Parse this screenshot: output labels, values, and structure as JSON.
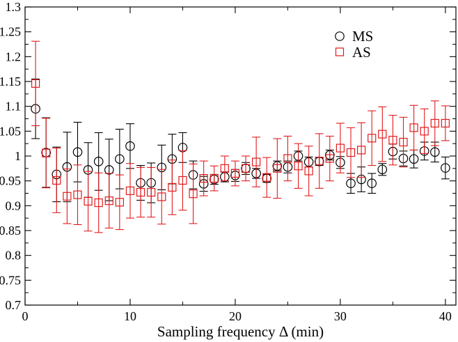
{
  "chart_data": {
    "type": "scatter",
    "title": "",
    "xlabel": "Sampling frequency Δ  (min)",
    "ylabel": "",
    "xlim": [
      0,
      41
    ],
    "ylim": [
      0.7,
      1.3
    ],
    "xticks": [
      0,
      10,
      20,
      30,
      40
    ],
    "yticks": [
      0.7,
      0.75,
      0.8,
      0.85,
      0.9,
      0.95,
      1,
      1.05,
      1.1,
      1.15,
      1.2,
      1.25,
      1.3
    ],
    "x_tick_labels": [
      "0",
      "10",
      "20",
      "30",
      "40"
    ],
    "y_tick_labels": [
      "0.7",
      "0.75",
      "0.8",
      "0.85",
      "0.9",
      "0.95",
      "1",
      "1.05",
      "1.1",
      "1.15",
      "1.2",
      "1.25",
      "1.3"
    ],
    "grid": false,
    "legend": {
      "placement": "top-right",
      "entries": [
        "MS",
        "AS"
      ]
    },
    "series": [
      {
        "name": "MS",
        "marker": "circle",
        "color": "#000000",
        "x": [
          1,
          2,
          3,
          4,
          5,
          6,
          7,
          8,
          9,
          10,
          11,
          12,
          13,
          14,
          15,
          16,
          17,
          18,
          19,
          20,
          21,
          22,
          23,
          24,
          25,
          26,
          27,
          28,
          29,
          30,
          31,
          32,
          33,
          34,
          35,
          36,
          37,
          38,
          39,
          40
        ],
        "y": [
          1.095,
          1.007,
          0.963,
          0.978,
          1.008,
          0.972,
          0.989,
          0.972,
          0.994,
          1.02,
          0.946,
          0.946,
          0.977,
          0.994,
          1.017,
          0.962,
          0.944,
          0.953,
          0.958,
          0.961,
          0.975,
          0.965,
          0.955,
          0.98,
          0.978,
          1.0,
          0.988,
          0.989,
          1.002,
          0.987,
          0.945,
          0.953,
          0.945,
          0.973,
          1.009,
          0.995,
          0.994,
          1.01,
          1.008,
          0.976
        ],
        "err": [
          0.06,
          0.07,
          0.055,
          0.07,
          0.06,
          0.055,
          0.058,
          0.062,
          0.06,
          0.045,
          0.035,
          0.04,
          0.045,
          0.05,
          0.03,
          0.028,
          0.015,
          0.01,
          0.01,
          0.012,
          0.012,
          0.01,
          0.008,
          0.01,
          0.012,
          0.01,
          0.01,
          0.008,
          0.01,
          0.012,
          0.02,
          0.025,
          0.02,
          0.012,
          0.015,
          0.015,
          0.018,
          0.018,
          0.02,
          0.022
        ]
      },
      {
        "name": "AS",
        "marker": "square",
        "color": "#e31a1c",
        "x": [
          1,
          2,
          3,
          4,
          5,
          6,
          7,
          8,
          9,
          10,
          11,
          12,
          13,
          14,
          15,
          16,
          17,
          18,
          19,
          20,
          21,
          22,
          23,
          24,
          25,
          26,
          27,
          28,
          29,
          30,
          31,
          32,
          33,
          34,
          35,
          36,
          37,
          38,
          39,
          40
        ],
        "y": [
          1.146,
          1.006,
          0.951,
          0.919,
          0.922,
          0.909,
          0.906,
          0.91,
          0.907,
          0.93,
          0.927,
          0.927,
          0.918,
          0.937,
          0.951,
          0.924,
          0.955,
          0.955,
          0.975,
          0.965,
          0.975,
          0.988,
          0.957,
          0.975,
          0.995,
          0.98,
          0.97,
          0.99,
          0.995,
          1.016,
          1.007,
          1.012,
          1.036,
          1.044,
          1.032,
          1.028,
          1.057,
          1.05,
          1.066,
          1.066
        ],
        "err": [
          0.085,
          0.07,
          0.065,
          0.055,
          0.06,
          0.06,
          0.06,
          0.055,
          0.055,
          0.055,
          0.05,
          0.05,
          0.055,
          0.055,
          0.06,
          0.06,
          0.035,
          0.025,
          0.025,
          0.025,
          0.025,
          0.05,
          0.04,
          0.06,
          0.045,
          0.045,
          0.05,
          0.055,
          0.045,
          0.05,
          0.05,
          0.055,
          0.055,
          0.055,
          0.05,
          0.05,
          0.045,
          0.045,
          0.045,
          0.035
        ]
      }
    ]
  }
}
